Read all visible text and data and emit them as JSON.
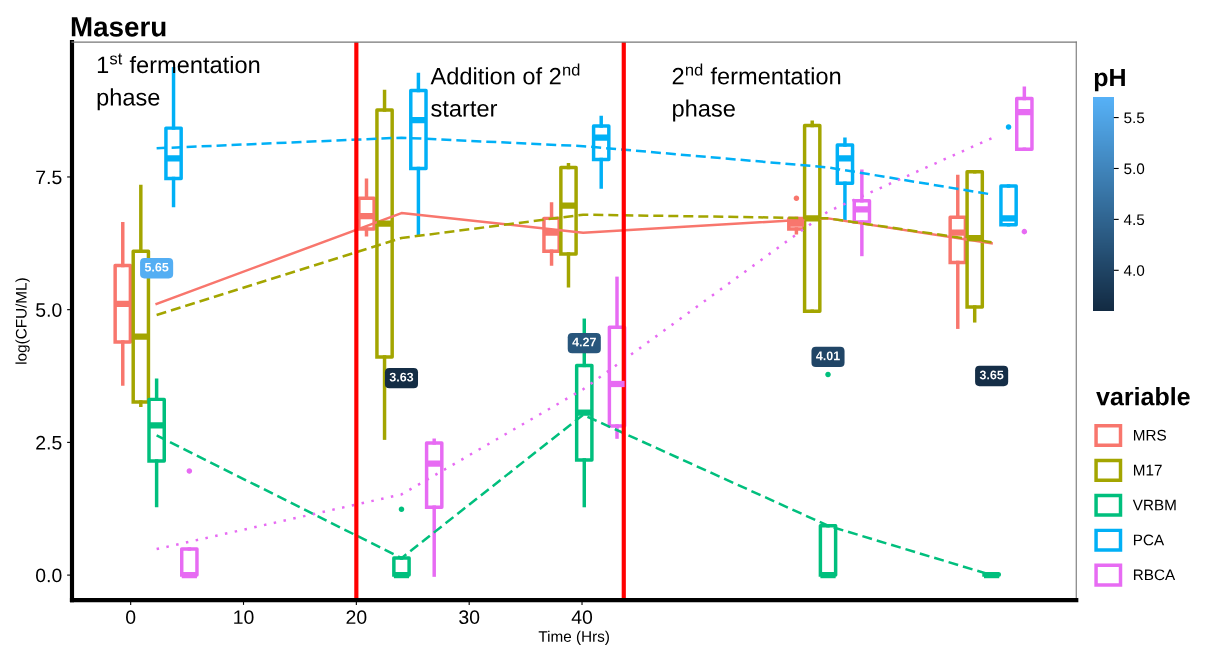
{
  "chart_data": {
    "type": "box",
    "title": "Maseru",
    "xlabel": "Time (Hrs)",
    "ylabel": "log(CFU/ML)",
    "legend_title": "variable",
    "clabel": "pH",
    "xlim": [
      -5.2,
      83.8
    ],
    "ylim": [
      -0.47,
      10.04
    ],
    "xticks": [
      0,
      10,
      20,
      30,
      40
    ],
    "yticks": [
      {
        "value": 0,
        "label": "0.0"
      },
      {
        "value": 2.5,
        "label": "2.5"
      },
      {
        "value": 5,
        "label": "5.0"
      },
      {
        "value": 7.5,
        "label": "7.5"
      }
    ],
    "clim": [
      3.6,
      5.7
    ],
    "cticks": [
      {
        "value": 4,
        "label": "4.0"
      },
      {
        "value": 4.5,
        "label": "4.5"
      },
      {
        "value": 5,
        "label": "5.0"
      },
      {
        "value": 5.5,
        "label": "5.5"
      }
    ],
    "grid": false,
    "legend": "right",
    "series": [
      {
        "name": "MRS",
        "color": "#f8766d",
        "x": [
          -0.7,
          20.9,
          37.3,
          59.0,
          73.3
        ],
        "boxes": [
          {
            "low": 3.6,
            "q1": 4.39,
            "median": 5.11,
            "q3": 5.83,
            "high": 6.62
          },
          {
            "low": 6.41,
            "q1": 6.52,
            "median": 6.76,
            "q3": 7.1,
            "high": 7.44
          },
          {
            "low": 5.86,
            "q1": 6.1,
            "median": 6.45,
            "q3": 6.72,
            "high": 6.99
          },
          {
            "low": 6.45,
            "q1": 6.52,
            "median": 6.62,
            "q3": 6.72,
            "high": 6.72,
            "outliers": [
              7.1
            ]
          },
          {
            "low": 4.67,
            "q1": 5.89,
            "median": 6.45,
            "q3": 6.74,
            "high": 7.51
          }
        ]
      },
      {
        "name": "M17",
        "color": "#a3a500",
        "x": [
          0.9,
          22.5,
          38.8,
          60.4,
          74.8
        ],
        "boxes": [
          {
            "low": 3.2,
            "q1": 3.26,
            "median": 4.49,
            "q3": 6.1,
            "high": 7.32
          },
          {
            "low": 2.58,
            "q1": 4.11,
            "median": 6.62,
            "q3": 8.76,
            "high": 9.11
          },
          {
            "low": 5.45,
            "q1": 6.05,
            "median": 6.96,
            "q3": 7.68,
            "high": 7.73
          },
          {
            "low": 4.97,
            "q1": 4.97,
            "median": 6.72,
            "q3": 8.47,
            "high": 8.53
          },
          {
            "low": 4.79,
            "q1": 5.05,
            "median": 6.35,
            "q3": 7.6,
            "high": 7.6
          }
        ]
      },
      {
        "name": "VRBM",
        "color": "#00bf7d",
        "x": [
          2.3,
          24.0,
          40.2,
          61.8,
          76.3
        ],
        "boxes": [
          {
            "low": 1.31,
            "q1": 2.15,
            "median": 2.82,
            "q3": 3.31,
            "high": 3.67
          },
          {
            "low": 0,
            "q1": 0,
            "median": 0,
            "q3": 0.32,
            "high": 0.32,
            "outliers": [
              1.24
            ]
          },
          {
            "low": 1.31,
            "q1": 2.17,
            "median": 3.06,
            "q3": 3.95,
            "high": 4.8
          },
          {
            "low": 0,
            "q1": 0,
            "median": 0,
            "q3": 0.93,
            "high": 0.93,
            "outliers": [
              3.78
            ]
          },
          {
            "low": 0,
            "q1": 0,
            "median": 0,
            "q3": 0.02,
            "high": 0.02
          }
        ]
      },
      {
        "name": "PCA",
        "color": "#00b0f6",
        "x": [
          3.8,
          25.5,
          41.7,
          63.3,
          77.8
        ],
        "boxes": [
          {
            "low": 6.96,
            "q1": 7.47,
            "median": 7.85,
            "q3": 8.42,
            "high": 9.54
          },
          {
            "low": 6.41,
            "q1": 7.66,
            "median": 8.57,
            "q3": 9.13,
            "high": 9.43
          },
          {
            "low": 7.31,
            "q1": 7.83,
            "median": 8.24,
            "q3": 8.46,
            "high": 8.62
          },
          {
            "low": 6.72,
            "q1": 7.38,
            "median": 7.85,
            "q3": 8.1,
            "high": 8.21
          },
          {
            "low": 6.6,
            "q1": 6.6,
            "median": 6.72,
            "q3": 7.33,
            "high": 7.33,
            "outliers": [
              8.44
            ]
          }
        ]
      },
      {
        "name": "RBCA",
        "color": "#e76bf3",
        "x": [
          5.2,
          26.9,
          43.1,
          64.8,
          79.2
        ],
        "boxes": [
          {
            "low": 0,
            "q1": 0,
            "median": 0,
            "q3": 0.49,
            "high": 0.49,
            "outliers": [
              1.96
            ]
          },
          {
            "low": 0,
            "q1": 1.28,
            "median": 2.1,
            "q3": 2.49,
            "high": 2.54
          },
          {
            "low": 2.6,
            "q1": 2.81,
            "median": 3.6,
            "q3": 4.67,
            "high": 5.59
          },
          {
            "low": 6.04,
            "q1": 6.65,
            "median": 6.89,
            "q3": 7.05,
            "high": 7.61
          },
          {
            "low": 8.02,
            "q1": 8.02,
            "median": 8.72,
            "q3": 8.98,
            "high": 9.17,
            "outliers": [
              6.47
            ]
          }
        ]
      },
      {
        "type": "line",
        "color": "#f8766d",
        "line_style": "solid",
        "x": [
          2.3,
          24.0,
          40.1,
          61.8,
          76.3
        ],
        "values": [
          5.11,
          6.82,
          6.45,
          6.72,
          6.25
        ]
      },
      {
        "type": "line",
        "color": "#a3a500",
        "line_style": "dashed",
        "x": [
          2.3,
          24.0,
          40.1,
          61.8,
          76.3
        ],
        "values": [
          4.9,
          6.35,
          6.79,
          6.72,
          6.27
        ]
      },
      {
        "type": "line",
        "color": "#00bf7d",
        "line_style": "dashed",
        "x": [
          2.3,
          24.0,
          40.1,
          61.8,
          76.3
        ],
        "values": [
          2.63,
          0.32,
          3.02,
          0.93,
          0
        ]
      },
      {
        "type": "line",
        "color": "#00b0f6",
        "line_style": "dashed",
        "x": [
          2.3,
          24.0,
          40.1,
          61.8,
          76.3
        ],
        "values": [
          8.04,
          8.24,
          8.08,
          7.68,
          7.17
        ]
      },
      {
        "type": "line",
        "color": "#e76bf3",
        "line_style": "dotted",
        "x": [
          2.3,
          24.0,
          40.1,
          61.8,
          76.3
        ],
        "values": [
          0.49,
          1.52,
          3.5,
          6.85,
          8.23
        ]
      }
    ],
    "ref_lines": [
      {
        "axis": "x",
        "value": 20.0,
        "color": "#ff0000"
      },
      {
        "axis": "x",
        "value": 43.7,
        "color": "#ff0000"
      }
    ],
    "annotations": [
      "1$^{st}$ fermentation\nphase",
      "Addition of 2$^{nd}$\nstarter",
      "2$^{nd}$ fermentation\nphase",
      {
        "text": "5.65",
        "x": 2.3,
        "y": 5.78
      },
      {
        "text": "3.63",
        "x": 24.0,
        "y": 3.71
      },
      {
        "text": "4.27",
        "x": 40.2,
        "y": 4.37
      },
      {
        "text": "4.01",
        "x": 61.8,
        "y": 4.11
      },
      {
        "text": "3.65",
        "x": 76.3,
        "y": 3.75
      }
    ]
  }
}
